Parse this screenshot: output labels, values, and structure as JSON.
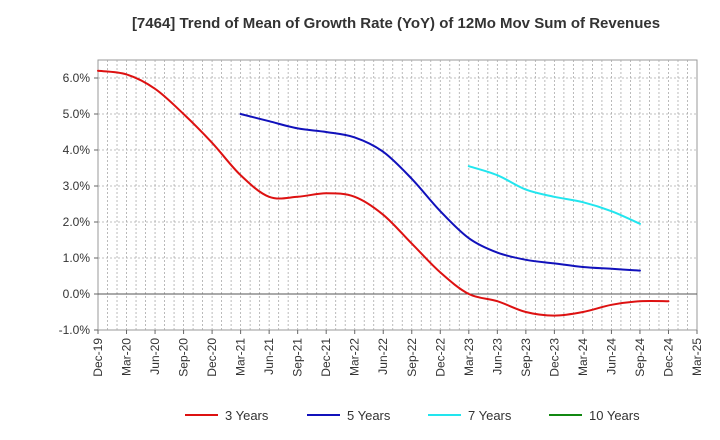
{
  "chart_data": {
    "type": "line",
    "title": "[7464]  Trend of Mean of Growth Rate (YoY) of 12Mo Mov Sum of Revenues",
    "xlabel": "",
    "ylabel": "",
    "ylim": [
      -1.0,
      6.5
    ],
    "yticks": [
      -1.0,
      0.0,
      1.0,
      2.0,
      3.0,
      4.0,
      5.0,
      6.0
    ],
    "ytick_labels": [
      "-1.0%",
      "0.0%",
      "1.0%",
      "2.0%",
      "3.0%",
      "4.0%",
      "5.0%",
      "6.0%"
    ],
    "x_labels": [
      "Dec-19",
      "Mar-20",
      "Jun-20",
      "Sep-20",
      "Dec-20",
      "Mar-21",
      "Jun-21",
      "Sep-21",
      "Dec-21",
      "Mar-22",
      "Jun-22",
      "Sep-22",
      "Dec-22",
      "Mar-23",
      "Jun-23",
      "Sep-23",
      "Dec-23",
      "Mar-24",
      "Jun-24",
      "Sep-24",
      "Dec-24",
      "Mar-25"
    ],
    "grid": true,
    "legend_position": "bottom",
    "series": [
      {
        "name": "3 Years",
        "color": "#dd1111",
        "values": [
          6.2,
          6.1,
          5.7,
          5.0,
          4.2,
          3.3,
          2.7,
          2.7,
          2.8,
          2.7,
          2.2,
          1.4,
          0.6,
          0.0,
          -0.2,
          -0.5,
          -0.6,
          -0.5,
          -0.3,
          -0.2,
          -0.2,
          null
        ]
      },
      {
        "name": "5 Years",
        "color": "#1111bb",
        "values": [
          null,
          null,
          null,
          null,
          null,
          5.0,
          4.8,
          4.6,
          4.5,
          4.35,
          3.95,
          3.2,
          2.3,
          1.55,
          1.15,
          0.95,
          0.85,
          0.75,
          0.7,
          0.65,
          null,
          null
        ]
      },
      {
        "name": "7 Years",
        "color": "#22e5ee",
        "values": [
          null,
          null,
          null,
          null,
          null,
          null,
          null,
          null,
          null,
          null,
          null,
          null,
          null,
          3.55,
          3.3,
          2.9,
          2.7,
          2.55,
          2.3,
          1.95,
          null,
          null
        ]
      },
      {
        "name": "10 Years",
        "color": "#118811",
        "values": [
          null,
          null,
          null,
          null,
          null,
          null,
          null,
          null,
          null,
          null,
          null,
          null,
          null,
          null,
          null,
          null,
          null,
          null,
          null,
          null,
          null,
          null
        ]
      }
    ]
  }
}
